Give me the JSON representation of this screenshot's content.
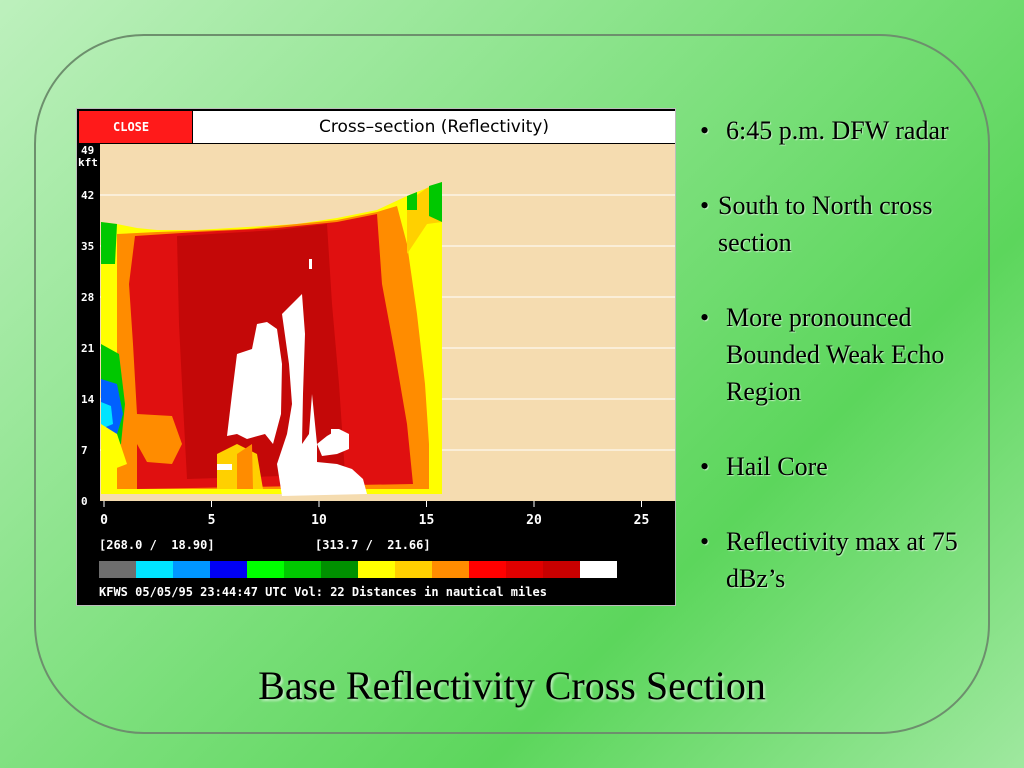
{
  "radar": {
    "close_label": "CLOSE",
    "title": "Cross–section (Reflectivity)",
    "y_unit_top": "49",
    "y_unit": "kft",
    "y_ticks": [
      "42",
      "35",
      "28",
      "21",
      "14",
      "7",
      "0"
    ],
    "x_ticks": [
      "0",
      "5",
      "10",
      "15",
      "20",
      "25"
    ],
    "coord_left": "[268.0 /  18.90]",
    "coord_right": "[313.7 /  21.66]",
    "status": "KFWS 05/05/95 23:44:47 UTC Vol: 22 Distances in nautical miles",
    "colorbar": [
      "#6e6e6e",
      "#00e4ff",
      "#0096ff",
      "#0000f6",
      "#00ff00",
      "#00c800",
      "#009000",
      "#ffff00",
      "#ffd000",
      "#ff8c00",
      "#ff0000",
      "#e00000",
      "#c80000",
      "#ffffff"
    ],
    "colors": {
      "plot_bg": "#f5dcb0",
      "grid": "#ffffff",
      "red": "#e01010",
      "dark_red": "#c40808",
      "orange": "#ff8c00",
      "yellow": "#ffff00",
      "gold": "#ffd000",
      "green": "#00c800",
      "blue": "#0060ff",
      "white": "#ffffff"
    }
  },
  "bullets": [
    {
      "symbol": "•",
      "text": "6:45 p.m. DFW radar"
    },
    {
      "symbol": "•",
      "text": "South to North cross section"
    },
    {
      "symbol": "•",
      "text": "More pronounced Bounded Weak Echo Region"
    },
    {
      "symbol": "•",
      "text": "Hail Core"
    },
    {
      "symbol": "•",
      "text": "Reflectivity max at 75 dBz’s"
    }
  ],
  "slide_title": "Base Reflectivity Cross Section"
}
